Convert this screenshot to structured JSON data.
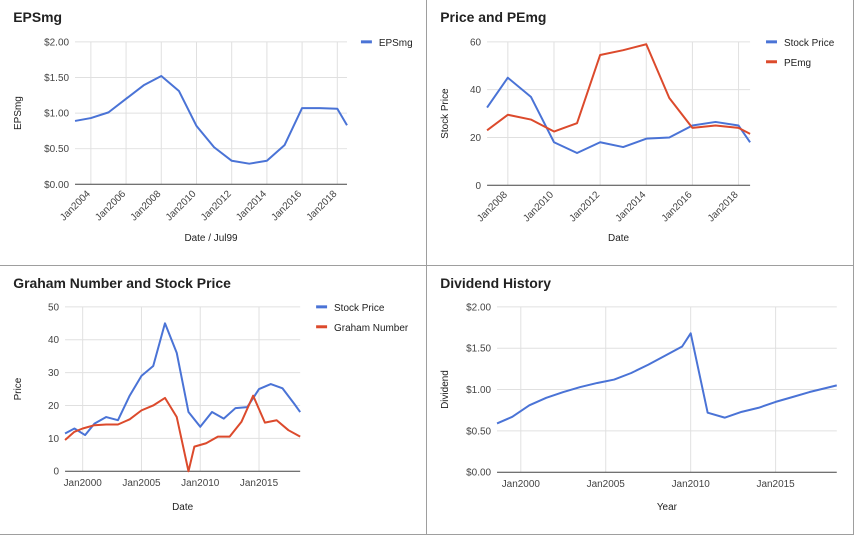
{
  "chart_data": [
    {
      "type": "line",
      "title": "EPSmg",
      "xlabel": "Date / Jul99",
      "ylabel": "EPSmg",
      "x_ticks": [
        "Jan2004",
        "Jan2006",
        "Jan2008",
        "Jan2010",
        "Jan2012",
        "Jan2014",
        "Jan2016",
        "Jan2018"
      ],
      "x_tick_values": [
        2004,
        2006,
        2008,
        2010,
        2012,
        2014,
        2016,
        2018
      ],
      "y_ticks": [
        "$0.00",
        "$0.50",
        "$1.00",
        "$1.50",
        "$2.00"
      ],
      "y_tick_values": [
        0,
        0.5,
        1.0,
        1.5,
        2.0
      ],
      "xlim": [
        2003.1,
        2018.55
      ],
      "ylim": [
        0,
        2.0
      ],
      "legend_position": "top-right",
      "grid": true,
      "series": [
        {
          "name": "EPSmg",
          "color": "#4a73d6",
          "x": [
            2003.1,
            2004,
            2005,
            2006,
            2007,
            2008,
            2009,
            2010,
            2011,
            2012,
            2013,
            2014,
            2015,
            2016,
            2017,
            2018,
            2018.55
          ],
          "y": [
            0.89,
            0.93,
            1.01,
            1.2,
            1.39,
            1.52,
            1.31,
            0.82,
            0.52,
            0.33,
            0.29,
            0.33,
            0.55,
            1.07,
            1.07,
            1.06,
            0.83
          ]
        }
      ]
    },
    {
      "type": "line",
      "title": "Price and PEmg",
      "xlabel": "Date",
      "ylabel": "Stock Price",
      "x_ticks": [
        "Jan2008",
        "Jan2010",
        "Jan2012",
        "Jan2014",
        "Jan2016",
        "Jan2018"
      ],
      "x_tick_values": [
        2008,
        2010,
        2012,
        2014,
        2016,
        2018
      ],
      "y_ticks": [
        "0",
        "20",
        "40",
        "60"
      ],
      "y_tick_values": [
        0,
        20,
        40,
        60
      ],
      "xlim": [
        2007.1,
        2018.5
      ],
      "ylim": [
        0,
        60
      ],
      "legend_position": "top-right",
      "grid": true,
      "series": [
        {
          "name": "Stock Price",
          "color": "#4a73d6",
          "x": [
            2007.1,
            2008,
            2009,
            2010,
            2011,
            2012,
            2013,
            2014,
            2015,
            2016,
            2017,
            2018,
            2018.5
          ],
          "y": [
            32.5,
            45,
            37,
            18,
            13.5,
            18,
            16,
            19.5,
            20,
            25,
            26.5,
            25,
            18
          ]
        },
        {
          "name": "PEmg",
          "color": "#dc4a2c",
          "x": [
            2007.1,
            2008,
            2009,
            2010,
            2011,
            2012,
            2013,
            2014,
            2015,
            2016,
            2017,
            2018,
            2018.5
          ],
          "y": [
            23,
            29.5,
            27.5,
            22.5,
            26,
            54.5,
            56.5,
            59,
            36.5,
            24,
            25,
            24,
            21.5
          ]
        }
      ]
    },
    {
      "type": "line",
      "title": "Graham Number and Stock Price",
      "xlabel": "Date",
      "ylabel": "Price",
      "x_ticks": [
        "Jan2000",
        "Jan2005",
        "Jan2010",
        "Jan2015"
      ],
      "x_tick_values": [
        2000,
        2005,
        2010,
        2015
      ],
      "y_ticks": [
        "0",
        "10",
        "20",
        "30",
        "40",
        "50"
      ],
      "y_tick_values": [
        0,
        10,
        20,
        30,
        40,
        50
      ],
      "xlim": [
        1998.5,
        2018.5
      ],
      "ylim": [
        0,
        50
      ],
      "legend_position": "top-right",
      "grid": true,
      "series": [
        {
          "name": "Stock Price",
          "color": "#4a73d6",
          "x": [
            1998.5,
            1999.3,
            2000.2,
            2001,
            2002,
            2003,
            2004,
            2005,
            2006,
            2007,
            2008,
            2009,
            2010,
            2011,
            2012,
            2013,
            2014,
            2015,
            2016,
            2017,
            2018,
            2018.5
          ],
          "y": [
            11.5,
            13,
            11,
            14.5,
            16.5,
            15.5,
            23,
            29,
            32,
            45,
            36,
            18,
            13.5,
            18,
            16,
            19.2,
            19.5,
            25,
            26.5,
            25.2,
            20.5,
            18
          ]
        },
        {
          "name": "Graham Number",
          "color": "#dc4a2c",
          "x": [
            1998.5,
            1999.3,
            2000,
            2001,
            2002,
            2003,
            2004,
            2005,
            2006,
            2007,
            2008,
            2009,
            2009.5,
            2010.5,
            2011.5,
            2012.5,
            2013.5,
            2014.5,
            2015.5,
            2016.5,
            2017.5,
            2018.5
          ],
          "y": [
            9.5,
            12,
            13,
            14,
            14.2,
            14.2,
            15.8,
            18.5,
            20,
            22.3,
            16.5,
            0,
            7.5,
            8.5,
            10.5,
            10.5,
            15,
            23,
            14.8,
            15.5,
            12.5,
            10.5
          ]
        }
      ]
    },
    {
      "type": "line",
      "title": "Dividend History",
      "xlabel": "Year",
      "ylabel": "Dividend",
      "x_ticks": [
        "Jan2000",
        "Jan2005",
        "Jan2010",
        "Jan2015"
      ],
      "x_tick_values": [
        2000,
        2005,
        2010,
        2015
      ],
      "y_ticks": [
        "$0.00",
        "$0.50",
        "$1.00",
        "$1.50",
        "$2.00"
      ],
      "y_tick_values": [
        0,
        0.5,
        1.0,
        1.5,
        2.0
      ],
      "xlim": [
        1998.6,
        2018.6
      ],
      "ylim": [
        0,
        2.0
      ],
      "legend_position": "none",
      "grid": true,
      "series": [
        {
          "name": "",
          "color": "#4a73d6",
          "x": [
            1998.6,
            1999.5,
            2000.5,
            2001.5,
            2002.5,
            2003.5,
            2004.5,
            2005.5,
            2006.5,
            2007.5,
            2008.5,
            2009.5,
            2010,
            2011,
            2012,
            2013,
            2014,
            2015,
            2016,
            2017,
            2018,
            2018.6
          ],
          "y": [
            0.59,
            0.67,
            0.81,
            0.9,
            0.97,
            1.03,
            1.08,
            1.12,
            1.2,
            1.3,
            1.41,
            1.52,
            1.68,
            0.72,
            0.66,
            0.73,
            0.78,
            0.85,
            0.91,
            0.97,
            1.02,
            1.05
          ]
        }
      ]
    }
  ]
}
